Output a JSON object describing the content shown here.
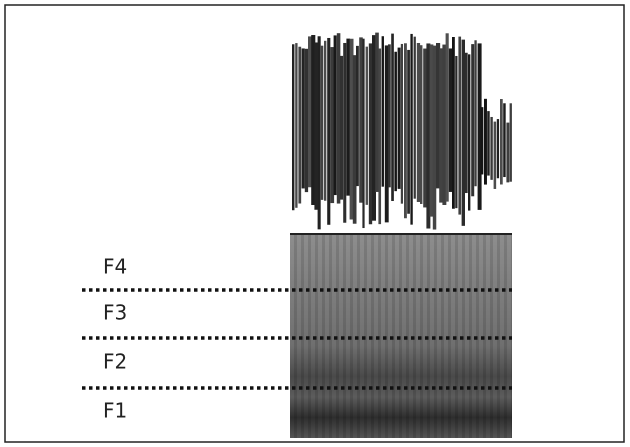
{
  "labels": [
    "F4",
    "F3",
    "F2",
    "F1"
  ]
}
